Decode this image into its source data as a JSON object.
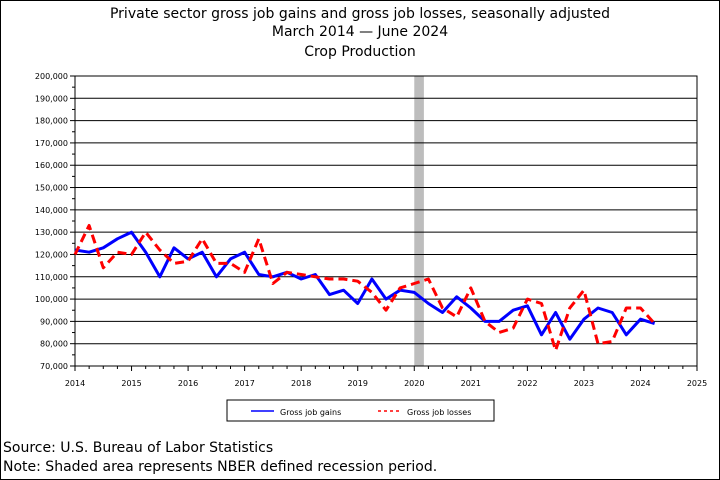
{
  "header": {
    "title": "Private sector gross job gains and gross job losses, seasonally adjusted",
    "subtitle": "March 2014 — June 2024",
    "industry": "Crop Production"
  },
  "footer": {
    "source": "Source: U.S. Bureau of Labor Statistics",
    "note": "Note: Shaded area represents NBER defined recession period."
  },
  "colors": {
    "gains": "#0000ff",
    "losses": "#ff0000",
    "recession": "#bdbdbd"
  },
  "chart_data": {
    "type": "line",
    "title": "Private sector gross job gains and gross job losses, seasonally adjusted",
    "xlim": [
      2014,
      2025
    ],
    "ylim": [
      70000,
      200000
    ],
    "x_ticks": [
      2014,
      2015,
      2016,
      2017,
      2018,
      2019,
      2020,
      2021,
      2022,
      2023,
      2024,
      2025
    ],
    "x_tick_labels": [
      "2014",
      "2015",
      "2016",
      "2017",
      "2018",
      "2019",
      "2020",
      "2021",
      "2022",
      "2023",
      "2024",
      "2025"
    ],
    "y_ticks": [
      70000,
      80000,
      90000,
      100000,
      110000,
      120000,
      130000,
      140000,
      150000,
      160000,
      170000,
      180000,
      190000,
      200000
    ],
    "y_tick_labels": [
      "70,000",
      "80,000",
      "90,000",
      "100,000",
      "110,000",
      "120,000",
      "130,000",
      "140,000",
      "150,000",
      "160,000",
      "170,000",
      "180,000",
      "190,000",
      "200,000"
    ],
    "grid": "horizontal",
    "recession": {
      "start": 2020.0,
      "end": 2020.17
    },
    "legend": {
      "position": "bottom",
      "gains_label": "Gross job gains",
      "losses_label": "Gross job losses"
    },
    "x": [
      2014.0,
      2014.25,
      2014.5,
      2014.75,
      2015.0,
      2015.25,
      2015.5,
      2015.75,
      2016.0,
      2016.25,
      2016.5,
      2016.75,
      2017.0,
      2017.25,
      2017.5,
      2017.75,
      2018.0,
      2018.25,
      2018.5,
      2018.75,
      2019.0,
      2019.25,
      2019.5,
      2019.75,
      2020.0,
      2020.25,
      2020.5,
      2020.75,
      2021.0,
      2021.25,
      2021.5,
      2021.75,
      2022.0,
      2022.25,
      2022.5,
      2022.75,
      2023.0,
      2023.25,
      2023.5,
      2023.75,
      2024.0,
      2024.25
    ],
    "series": [
      {
        "name": "Gross job gains",
        "style": "solid",
        "values": [
          122000,
          121000,
          123000,
          127000,
          130000,
          121000,
          110000,
          123000,
          118000,
          121000,
          110000,
          118000,
          121000,
          111000,
          110000,
          112000,
          109000,
          111000,
          102000,
          104000,
          98000,
          109000,
          100000,
          104000,
          103000,
          98000,
          94000,
          101000,
          96000,
          90000,
          90000,
          95000,
          97000,
          84000,
          94000,
          82000,
          91000,
          96000,
          94000,
          84000,
          91000,
          89000
        ]
      },
      {
        "name": "Gross job losses",
        "style": "dashed",
        "values": [
          120000,
          133000,
          114000,
          121000,
          120000,
          130000,
          122000,
          116000,
          117000,
          127000,
          116000,
          116000,
          112000,
          127000,
          107000,
          112000,
          111000,
          110000,
          109000,
          109000,
          108000,
          103000,
          95000,
          105000,
          107000,
          109000,
          96000,
          92000,
          105000,
          90000,
          85000,
          87000,
          100000,
          98000,
          77000,
          96000,
          104000,
          80000,
          81000,
          96000,
          96000,
          89000
        ]
      }
    ]
  }
}
